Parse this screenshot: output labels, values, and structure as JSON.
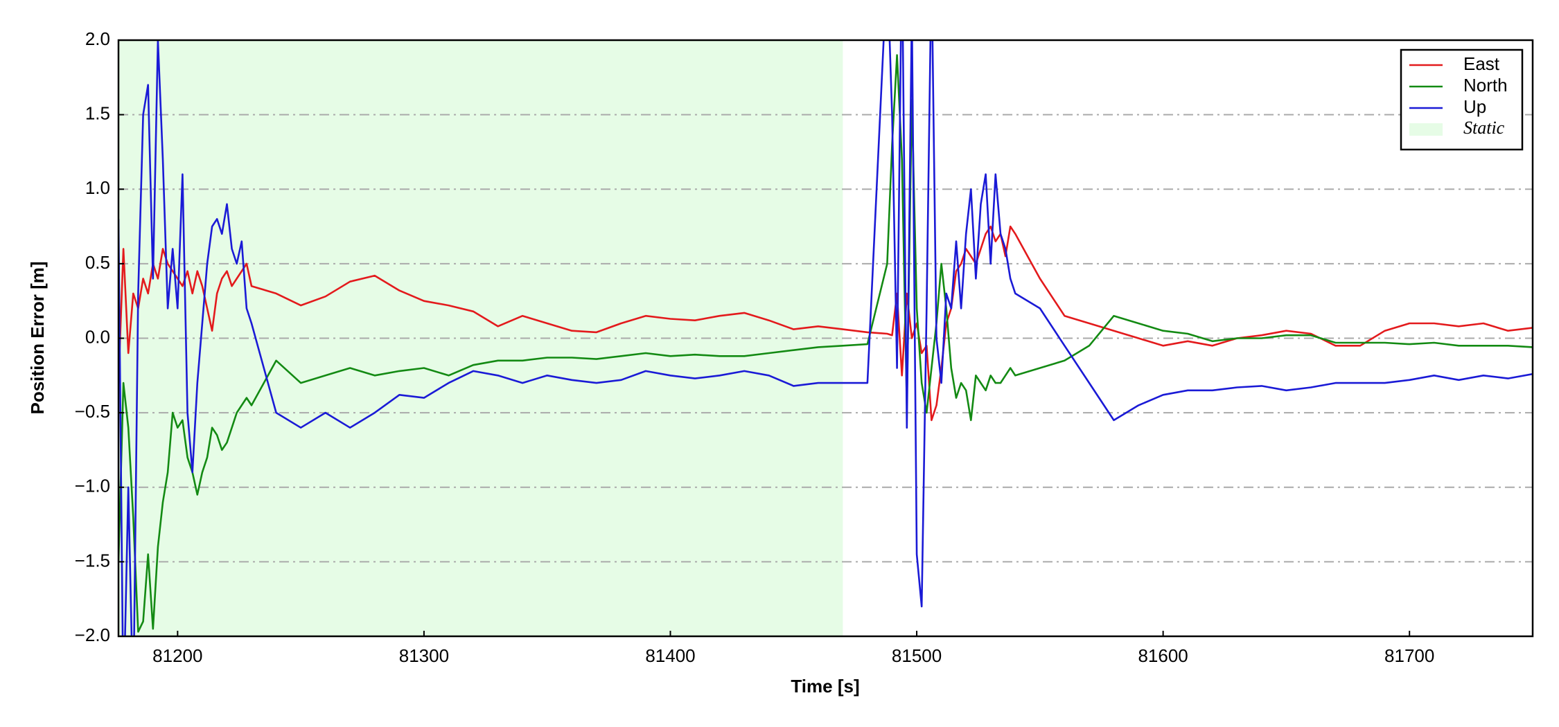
{
  "chart_data": {
    "type": "line",
    "xlabel": "Time [s]",
    "ylabel": "Position Error [m]",
    "xlim": [
      81176,
      81750
    ],
    "ylim": [
      -2,
      2
    ],
    "xticks": [
      81200,
      81300,
      81400,
      81500,
      81600,
      81700
    ],
    "yticks": [
      {
        "value": -2,
        "label": "−2.0"
      },
      {
        "value": -1.5,
        "label": "−1.5"
      },
      {
        "value": -1,
        "label": "−1.0"
      },
      {
        "value": -0.5,
        "label": "−0.5"
      },
      {
        "value": 0,
        "label": "0.0"
      },
      {
        "value": 0.5,
        "label": "0.5"
      },
      {
        "value": 1,
        "label": "1.0"
      },
      {
        "value": 1.5,
        "label": "1.5"
      },
      {
        "value": 2,
        "label": "2.0"
      }
    ],
    "grid": true,
    "legend": "upper right",
    "region": {
      "name": "Static",
      "color": "#e6fce6",
      "x": [
        81176,
        81470
      ]
    },
    "x": [
      81176,
      81178,
      81180,
      81182,
      81184,
      81186,
      81188,
      81190,
      81192,
      81194,
      81196,
      81198,
      81200,
      81202,
      81204,
      81206,
      81208,
      81210,
      81212,
      81214,
      81216,
      81218,
      81220,
      81222,
      81224,
      81226,
      81228,
      81230,
      81240,
      81250,
      81260,
      81270,
      81280,
      81290,
      81300,
      81310,
      81320,
      81330,
      81340,
      81350,
      81360,
      81370,
      81380,
      81390,
      81400,
      81410,
      81420,
      81430,
      81440,
      81450,
      81460,
      81470,
      81480,
      81488,
      81490,
      81492,
      81494,
      81496,
      81498,
      81500,
      81502,
      81504,
      81506,
      81508,
      81510,
      81512,
      81514,
      81516,
      81518,
      81520,
      81522,
      81524,
      81526,
      81528,
      81530,
      81532,
      81534,
      81536,
      81538,
      81540,
      81550,
      81560,
      81570,
      81580,
      81590,
      81600,
      81610,
      81620,
      81630,
      81640,
      81650,
      81660,
      81670,
      81680,
      81690,
      81700,
      81710,
      81720,
      81730,
      81740,
      81750
    ],
    "series": [
      {
        "name": "East",
        "color": "#e31a1c",
        "values": [
          -0.3,
          0.6,
          -0.1,
          0.3,
          0.2,
          0.4,
          0.3,
          0.5,
          0.4,
          0.6,
          0.5,
          0.45,
          0.4,
          0.35,
          0.45,
          0.3,
          0.45,
          0.35,
          0.2,
          0.05,
          0.3,
          0.4,
          0.45,
          0.35,
          0.4,
          0.45,
          0.5,
          0.35,
          0.3,
          0.22,
          0.28,
          0.38,
          0.42,
          0.32,
          0.25,
          0.22,
          0.18,
          0.08,
          0.15,
          0.1,
          0.05,
          0.04,
          0.1,
          0.15,
          0.13,
          0.12,
          0.15,
          0.17,
          0.12,
          0.06,
          0.08,
          0.06,
          0.04,
          0.03,
          0.02,
          0.3,
          -0.25,
          0.3,
          0.0,
          0.1,
          -0.1,
          -0.05,
          -0.55,
          -0.45,
          -0.2,
          0.1,
          0.2,
          0.45,
          0.5,
          0.6,
          0.55,
          0.5,
          0.6,
          0.7,
          0.75,
          0.65,
          0.7,
          0.55,
          0.75,
          0.7,
          0.4,
          0.15,
          0.1,
          0.05,
          0.0,
          -0.05,
          -0.02,
          -0.05,
          0.0,
          0.02,
          0.05,
          0.03,
          -0.05,
          -0.05,
          0.05,
          0.1,
          0.1,
          0.08,
          0.1,
          0.05,
          0.07
        ]
      },
      {
        "name": "North",
        "color": "#138a13",
        "values": [
          -1.5,
          -0.3,
          -0.6,
          -1.2,
          -1.97,
          -1.9,
          -1.45,
          -1.95,
          -1.4,
          -1.1,
          -0.9,
          -0.5,
          -0.6,
          -0.55,
          -0.8,
          -0.9,
          -1.05,
          -0.9,
          -0.8,
          -0.6,
          -0.65,
          -0.75,
          -0.7,
          -0.6,
          -0.5,
          -0.45,
          -0.4,
          -0.45,
          -0.15,
          -0.3,
          -0.25,
          -0.2,
          -0.25,
          -0.22,
          -0.2,
          -0.25,
          -0.18,
          -0.15,
          -0.15,
          -0.13,
          -0.13,
          -0.14,
          -0.12,
          -0.1,
          -0.12,
          -0.11,
          -0.12,
          -0.12,
          -0.1,
          -0.08,
          -0.06,
          -0.05,
          -0.04,
          0.5,
          1.3,
          1.9,
          1.2,
          -0.45,
          1.6,
          0.2,
          -0.3,
          -0.5,
          -0.2,
          0.1,
          0.5,
          0.2,
          -0.2,
          -0.4,
          -0.3,
          -0.35,
          -0.55,
          -0.25,
          -0.3,
          -0.35,
          -0.25,
          -0.3,
          -0.3,
          -0.25,
          -0.2,
          -0.25,
          -0.2,
          -0.15,
          -0.05,
          0.15,
          0.1,
          0.05,
          0.03,
          -0.02,
          0.0,
          0.0,
          0.02,
          0.02,
          -0.03,
          -0.03,
          -0.03,
          -0.04,
          -0.03,
          -0.05,
          -0.05,
          -0.05,
          -0.06
        ]
      },
      {
        "name": "Up",
        "color": "#1a1ad6",
        "values": [
          0.8,
          -2.5,
          -1.0,
          -2.5,
          0.3,
          1.5,
          1.7,
          0.4,
          2.0,
          1.2,
          0.2,
          0.6,
          0.2,
          1.1,
          -0.5,
          -0.9,
          -0.3,
          0.1,
          0.5,
          0.75,
          0.8,
          0.7,
          0.9,
          0.6,
          0.5,
          0.65,
          0.2,
          0.1,
          -0.5,
          -0.6,
          -0.5,
          -0.6,
          -0.5,
          -0.38,
          -0.4,
          -0.3,
          -0.22,
          -0.25,
          -0.3,
          -0.25,
          -0.28,
          -0.3,
          -0.28,
          -0.22,
          -0.25,
          -0.27,
          -0.25,
          -0.22,
          -0.25,
          -0.32,
          -0.3,
          -0.3,
          -0.3,
          2.5,
          1.5,
          -0.2,
          2.6,
          -0.6,
          2.2,
          -1.45,
          -1.8,
          0.2,
          2.5,
          0.0,
          -0.3,
          0.3,
          0.2,
          0.65,
          0.2,
          0.7,
          1.0,
          0.4,
          0.9,
          1.1,
          0.5,
          1.1,
          0.7,
          0.6,
          0.4,
          0.3,
          0.2,
          -0.05,
          -0.3,
          -0.55,
          -0.45,
          -0.38,
          -0.35,
          -0.35,
          -0.33,
          -0.32,
          -0.35,
          -0.33,
          -0.3,
          -0.3,
          -0.3,
          -0.28,
          -0.25,
          -0.28,
          -0.25,
          -0.27,
          -0.24
        ]
      }
    ]
  }
}
